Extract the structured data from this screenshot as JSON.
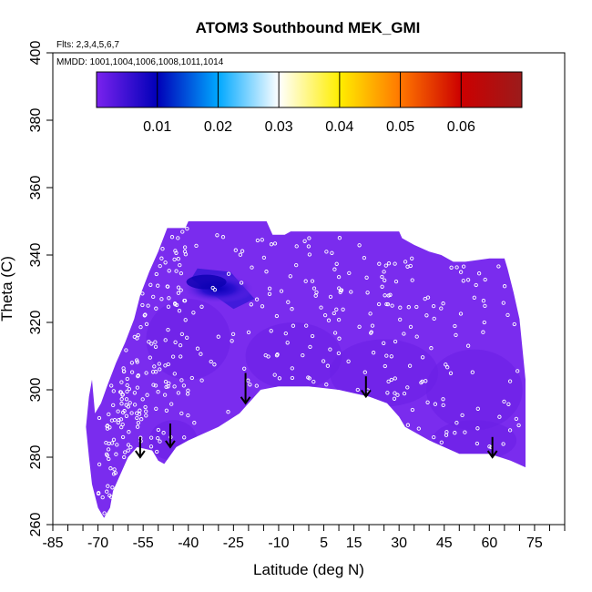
{
  "chart_data": {
    "type": "heatmap",
    "title": "ATOM3 Southbound MEK_GMI",
    "flights_note": "Flts: 2,3,4,5,6,7",
    "dates_note": "MMDD: 1001,1004,1006,1008,1011,1014",
    "xlabel": "Latitude (deg N)",
    "ylabel": "Theta (C)",
    "xlim": [
      -85,
      85
    ],
    "ylim": [
      260,
      400
    ],
    "x_ticks": [
      -85,
      -70,
      -55,
      -40,
      -25,
      -10,
      5,
      15,
      30,
      45,
      60,
      75
    ],
    "y_ticks": [
      260,
      280,
      300,
      320,
      340,
      360,
      380,
      400
    ],
    "colorbar": {
      "range": [
        0,
        0.07
      ],
      "ticks": [
        0.01,
        0.02,
        0.03,
        0.04,
        0.05,
        0.06
      ],
      "tick_labels": [
        "0.01",
        "0.02",
        "0.03",
        "0.04",
        "0.05",
        "0.06"
      ],
      "colors": [
        "#7a22ee",
        "#0000b8",
        "#00a8ff",
        "#ffffff",
        "#ffee00",
        "#ff7700",
        "#cc0000",
        "#9b1b1b"
      ]
    },
    "field_color": "#7a2cee",
    "outline": {
      "top": [
        [
          -71,
          293
        ],
        [
          -69,
          296
        ],
        [
          -67,
          301
        ],
        [
          -64,
          308
        ],
        [
          -61,
          314
        ],
        [
          -58,
          321
        ],
        [
          -56,
          328
        ],
        [
          -53,
          335
        ],
        [
          -50,
          341
        ],
        [
          -47,
          348
        ],
        [
          -41,
          348
        ],
        [
          -40,
          350
        ],
        [
          -14,
          350
        ],
        [
          -12,
          346
        ],
        [
          -8,
          346
        ],
        [
          -6,
          347
        ],
        [
          30,
          347
        ],
        [
          31,
          345
        ],
        [
          35,
          343
        ],
        [
          40,
          341
        ],
        [
          44,
          340
        ],
        [
          48,
          338
        ],
        [
          52,
          338
        ],
        [
          60,
          339
        ],
        [
          65,
          339
        ],
        [
          66,
          336
        ],
        [
          68,
          329
        ],
        [
          70,
          321
        ],
        [
          72,
          303
        ],
        [
          72,
          287
        ]
      ],
      "bottom": [
        [
          -72,
          303
        ],
        [
          -73,
          298
        ],
        [
          -74,
          289
        ],
        [
          -73,
          280
        ],
        [
          -72,
          272
        ],
        [
          -70,
          265
        ],
        [
          -68,
          262
        ],
        [
          -66,
          265
        ],
        [
          -65,
          270
        ],
        [
          -60,
          280
        ],
        [
          -57,
          283
        ],
        [
          -52,
          282
        ],
        [
          -50,
          279
        ],
        [
          -48,
          278
        ],
        [
          -44,
          283
        ],
        [
          -40,
          285
        ],
        [
          -30,
          289
        ],
        [
          -23,
          293
        ],
        [
          -20,
          296
        ],
        [
          -16,
          300
        ],
        [
          -10,
          301
        ],
        [
          0,
          301
        ],
        [
          10,
          300
        ],
        [
          15,
          299
        ],
        [
          20,
          298
        ],
        [
          26,
          296
        ],
        [
          30,
          292
        ],
        [
          32,
          289
        ],
        [
          40,
          285
        ],
        [
          50,
          281
        ],
        [
          60,
          281
        ],
        [
          67,
          279
        ],
        [
          72,
          277
        ]
      ]
    },
    "max_patch": {
      "peak": [
        -30,
        330
      ],
      "peak_value": 0.012
    },
    "arrows": [
      {
        "lat": -56,
        "theta_top": 286,
        "theta_tip": 280
      },
      {
        "lat": -46,
        "theta_top": 290,
        "theta_tip": 283
      },
      {
        "lat": -21,
        "theta_top": 305,
        "theta_tip": 296
      },
      {
        "lat": 19,
        "theta_top": 304,
        "theta_tip": 298
      },
      {
        "lat": 61,
        "theta_top": 286,
        "theta_tip": 280
      }
    ],
    "sample_points": "white circles marking measurement locations, densest near -60 to -40 deg N",
    "grid": false
  }
}
